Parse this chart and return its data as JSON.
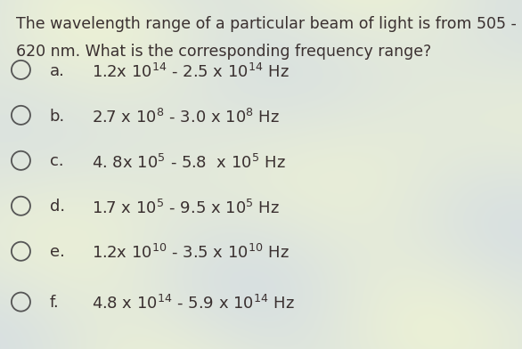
{
  "question_line1": "The wavelength range of a particular beam of light is from 505 -",
  "question_line2": "620 nm. What is the corresponding frequency range?",
  "option_labels": [
    "a.",
    "b.",
    "c.",
    "d.",
    "e.",
    "f."
  ],
  "option_texts": [
    "1.2x 10$^{14}$ - 2.5 x 10$^{14}$ Hz",
    "2.7 x 10$^{8}$ - 3.0 x 10$^{8}$ Hz",
    "4. 8x 10$^{5}$ - 5.8  x 10$^{5}$ Hz",
    "1.7 x 10$^{5}$ - 9.5 x 10$^{5}$ Hz",
    "1.2x 10$^{10}$ - 3.5 x 10$^{10}$ Hz",
    "4.8 x 10$^{14}$ - 5.9 x 10$^{14}$ Hz"
  ],
  "bg_color_base": "#dde8d8",
  "bg_color_light": "#e8e0f0",
  "text_color": "#3a3030",
  "circle_color": "#555555",
  "question_fontsize": 12.5,
  "option_fontsize": 13.0,
  "label_fontsize": 13.0,
  "fig_width": 5.86,
  "fig_height": 3.92,
  "dpi": 100
}
